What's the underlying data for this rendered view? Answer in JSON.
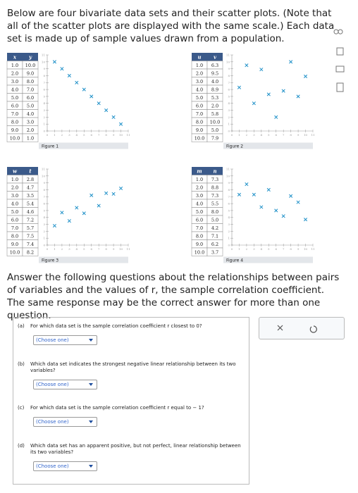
{
  "intro": "Below are four bivariate data sets and their scatter plots. (Note that all of the scatter plots are displayed with the same scale.) Each data set is made up of sample values drawn from a population.",
  "axis": {
    "range": [
      0,
      11
    ],
    "ticks": [
      0,
      1,
      2,
      3,
      4,
      5,
      6,
      7,
      8,
      9,
      10,
      11
    ]
  },
  "figures": [
    {
      "headers": [
        "x",
        "y"
      ],
      "caption": "Figure 1",
      "rows": [
        [
          "1.0",
          "10.0"
        ],
        [
          "2.0",
          "9.0"
        ],
        [
          "3.0",
          "8.0"
        ],
        [
          "4.0",
          "7.0"
        ],
        [
          "5.0",
          "6.0"
        ],
        [
          "6.0",
          "5.0"
        ],
        [
          "7.0",
          "4.0"
        ],
        [
          "8.0",
          "3.0"
        ],
        [
          "9.0",
          "2.0"
        ],
        [
          "10.0",
          "1.0"
        ]
      ]
    },
    {
      "headers": [
        "u",
        "v"
      ],
      "caption": "Figure 2",
      "rows": [
        [
          "1.0",
          "6.3"
        ],
        [
          "2.0",
          "9.5"
        ],
        [
          "3.0",
          "4.0"
        ],
        [
          "4.0",
          "8.9"
        ],
        [
          "5.0",
          "5.3"
        ],
        [
          "6.0",
          "2.0"
        ],
        [
          "7.0",
          "5.8"
        ],
        [
          "8.0",
          "10.0"
        ],
        [
          "9.0",
          "5.0"
        ],
        [
          "10.0",
          "7.9"
        ]
      ]
    },
    {
      "headers": [
        "w",
        "t"
      ],
      "caption": "Figure 3",
      "rows": [
        [
          "1.0",
          "2.8"
        ],
        [
          "2.0",
          "4.7"
        ],
        [
          "3.0",
          "3.5"
        ],
        [
          "4.0",
          "5.4"
        ],
        [
          "5.0",
          "4.6"
        ],
        [
          "6.0",
          "7.2"
        ],
        [
          "7.0",
          "5.7"
        ],
        [
          "8.0",
          "7.5"
        ],
        [
          "9.0",
          "7.4"
        ],
        [
          "10.0",
          "8.2"
        ]
      ]
    },
    {
      "headers": [
        "m",
        "n"
      ],
      "caption": "Figure 4",
      "rows": [
        [
          "1.0",
          "7.3"
        ],
        [
          "2.0",
          "8.8"
        ],
        [
          "3.0",
          "7.3"
        ],
        [
          "4.0",
          "5.5"
        ],
        [
          "5.0",
          "8.0"
        ],
        [
          "6.0",
          "5.0"
        ],
        [
          "7.0",
          "4.2"
        ],
        [
          "8.0",
          "7.1"
        ],
        [
          "9.0",
          "6.2"
        ],
        [
          "10.0",
          "3.7"
        ]
      ]
    }
  ],
  "instructions": "Answer the following questions about the relationships between pairs of variables and the values of r, the sample correlation coefficient. The same response may be the correct answer for more than one question.",
  "questions": [
    {
      "label": "(a)",
      "text": "For which data set is the sample correlation coefficient r closest to 0?",
      "select": "(Choose one)"
    },
    {
      "label": "(b)",
      "text": "Which data set indicates the strongest negative linear relationship between its two variables?",
      "select": "(Choose one)"
    },
    {
      "label": "(c)",
      "text": "For which data set is the sample correlation coefficient r equal to − 1?",
      "select": "(Choose one)"
    },
    {
      "label": "(d)",
      "text": "Which data set has an apparent positive, but not perfect, linear relationship between its two variables?",
      "select": "(Choose one)"
    }
  ]
}
